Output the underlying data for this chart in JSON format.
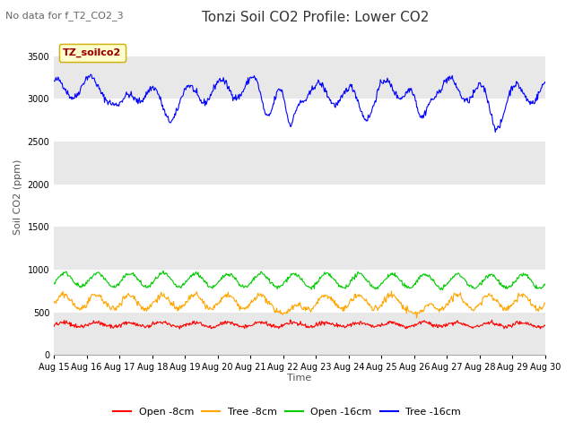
{
  "title": "Tonzi Soil CO2 Profile: Lower CO2",
  "subtitle": "No data for f_T2_CO2_3",
  "ylabel": "Soil CO2 (ppm)",
  "xlabel": "Time",
  "legend_label": "TZ_soilco2",
  "ylim": [
    0,
    3700
  ],
  "yticks": [
    0,
    500,
    1000,
    1500,
    2000,
    2500,
    3000,
    3500
  ],
  "background_color": "#ffffff",
  "plot_bg_color": "#ffffff",
  "band_colors": [
    "#e8e8e8",
    "#ffffff"
  ],
  "series": {
    "open_8cm": {
      "label": "Open -8cm",
      "color": "#ff0000"
    },
    "tree_8cm": {
      "label": "Tree -8cm",
      "color": "#ffa500"
    },
    "open_16cm": {
      "label": "Open -16cm",
      "color": "#00cc00"
    },
    "tree_16cm": {
      "label": "Tree -16cm",
      "color": "#0000ff"
    }
  },
  "xticklabels": [
    "Aug 15",
    "Aug 16",
    "Aug 17",
    "Aug 18",
    "Aug 19",
    "Aug 20",
    "Aug 21",
    "Aug 22",
    "Aug 23",
    "Aug 24",
    "Aug 25",
    "Aug 26",
    "Aug 27",
    "Aug 28",
    "Aug 29",
    "Aug 30"
  ],
  "n_days": 15,
  "pts_per_day": 48,
  "title_fontsize": 11,
  "subtitle_fontsize": 8,
  "tick_fontsize": 7,
  "ylabel_fontsize": 8,
  "xlabel_fontsize": 8
}
